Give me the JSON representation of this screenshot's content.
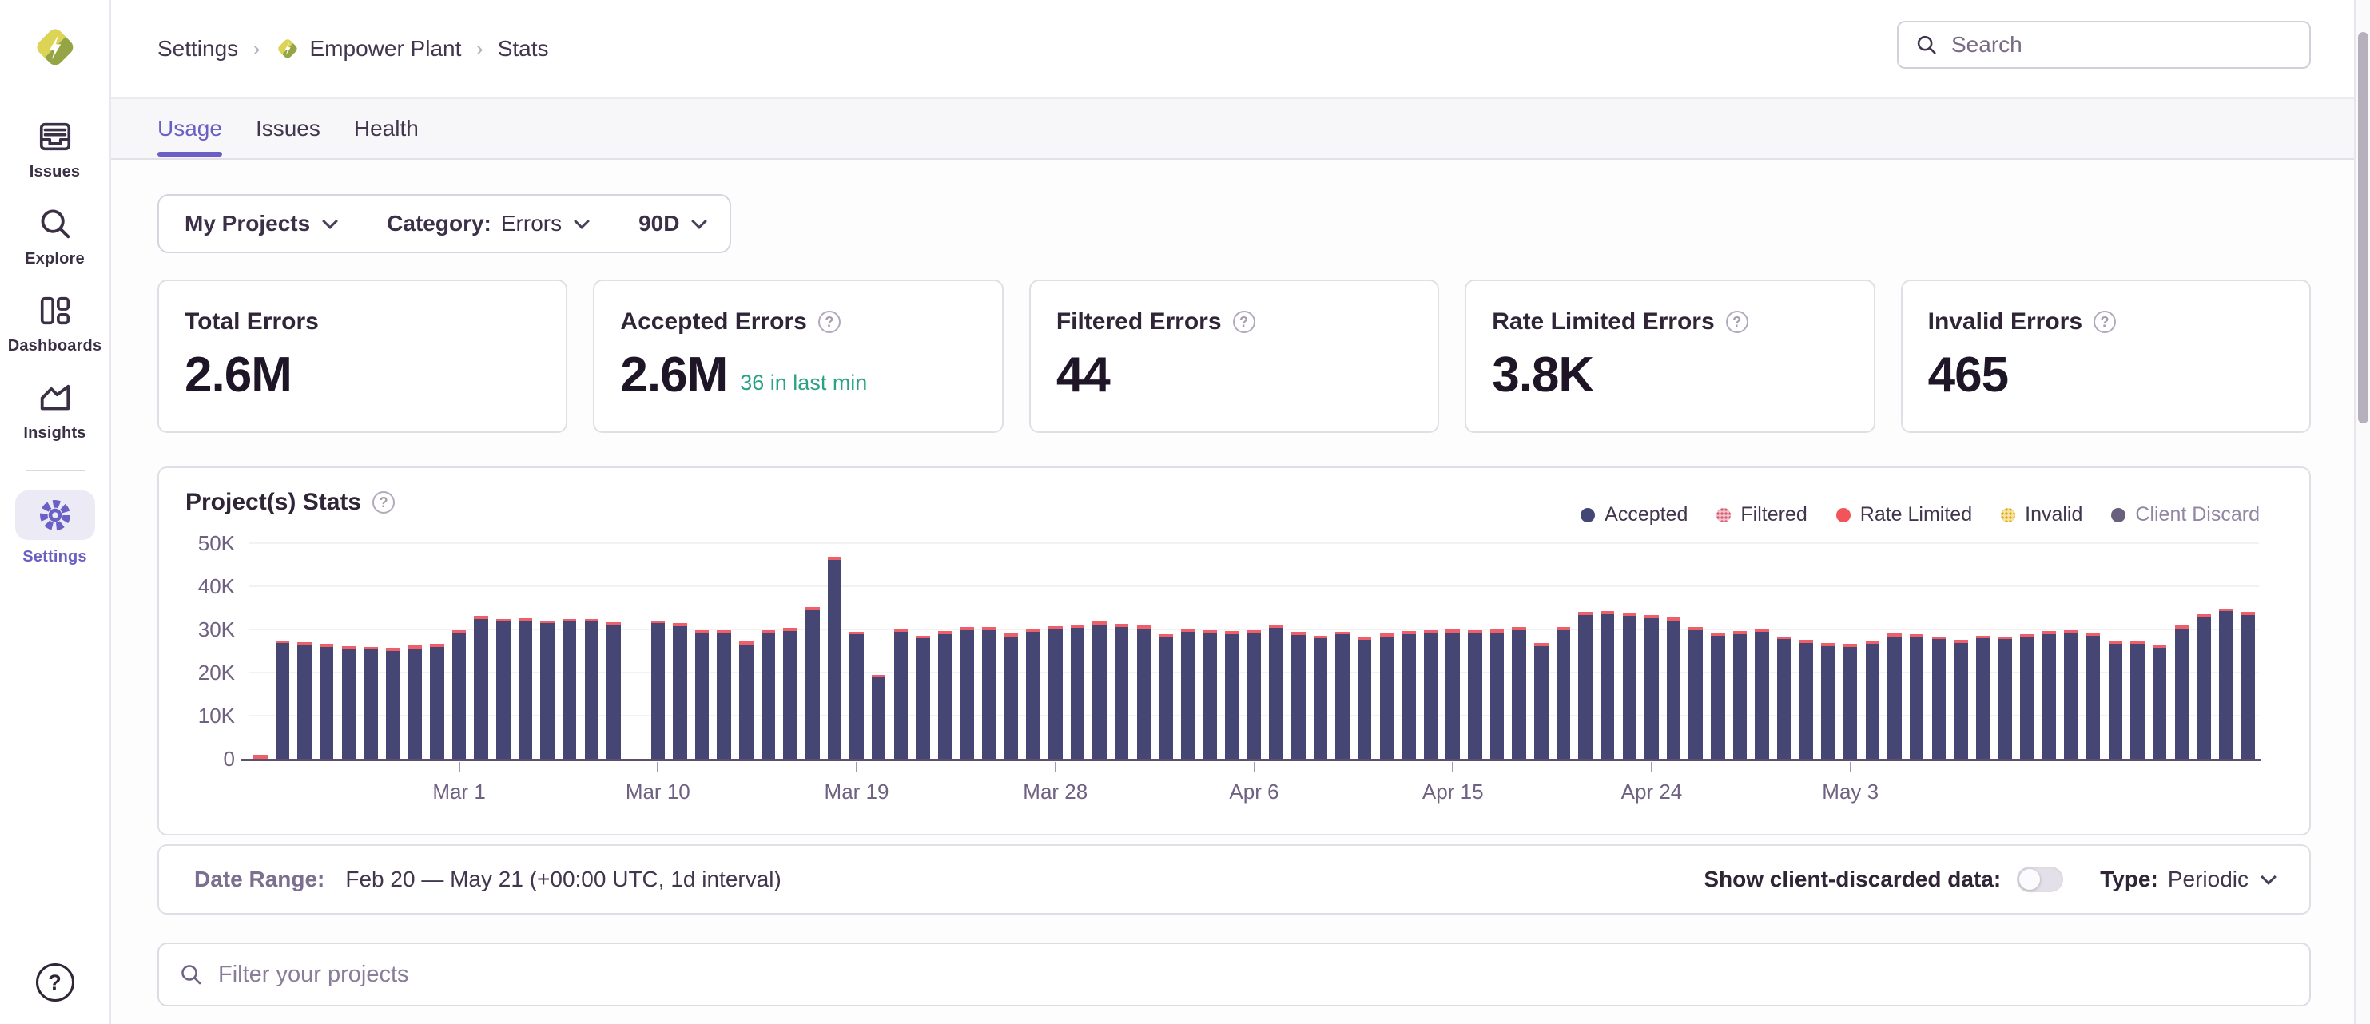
{
  "header": {
    "breadcrumbs": [
      "Settings",
      "Empower Plant",
      "Stats"
    ],
    "search_placeholder": "Search"
  },
  "sidebar": {
    "items": [
      {
        "label": "Issues",
        "active": false
      },
      {
        "label": "Explore",
        "active": false
      },
      {
        "label": "Dashboards",
        "active": false
      },
      {
        "label": "Insights",
        "active": false
      },
      {
        "label": "Settings",
        "active": true
      }
    ],
    "help_label": "?"
  },
  "tabs": [
    {
      "label": "Usage",
      "active": true
    },
    {
      "label": "Issues",
      "active": false
    },
    {
      "label": "Health",
      "active": false
    }
  ],
  "filterbar": {
    "projects": "My Projects",
    "category_label": "Category:",
    "category_value": "Errors",
    "period": "90D"
  },
  "cards": [
    {
      "title": "Total Errors",
      "value": "2.6M"
    },
    {
      "title": "Accepted Errors",
      "value": "2.6M",
      "subtext": "36 in last min"
    },
    {
      "title": "Filtered Errors",
      "value": "44"
    },
    {
      "title": "Rate Limited Errors",
      "value": "3.8K"
    },
    {
      "title": "Invalid Errors",
      "value": "465"
    }
  ],
  "stats_panel": {
    "title": "Project(s) Stats",
    "legend": [
      {
        "label": "Accepted",
        "color": "#444674",
        "pattern": "solid",
        "muted": false
      },
      {
        "label": "Filtered",
        "color": "#e9626e",
        "pattern": "dots",
        "muted": false
      },
      {
        "label": "Rate Limited",
        "color": "#f2545b",
        "pattern": "solid",
        "muted": false
      },
      {
        "label": "Invalid",
        "color": "#e9b712",
        "pattern": "dots",
        "muted": false
      },
      {
        "label": "Client Discard",
        "color": "#69607d",
        "pattern": "solid",
        "muted": true
      }
    ]
  },
  "chart_data": {
    "type": "bar",
    "stacked": true,
    "title": "Project(s) Stats",
    "x_axis": {
      "start": "Feb 20",
      "end": "May 21",
      "interval": "1d",
      "tick_labels": [
        "Mar 1",
        "Mar 10",
        "Mar 19",
        "Mar 28",
        "Apr 6",
        "Apr 15",
        "Apr 24",
        "May 3"
      ],
      "tick_day_indexes": [
        9,
        18,
        27,
        36,
        45,
        54,
        63,
        72
      ]
    },
    "y_axis": {
      "tick_labels": [
        "0",
        "10K",
        "20K",
        "30K",
        "40K",
        "50K"
      ],
      "max_k": 50
    },
    "legend_position": "top-right",
    "series": [
      {
        "name": "Accepted",
        "color": "#454673",
        "unit": "K",
        "values": [
          0,
          26.8,
          26.3,
          26.0,
          25.4,
          25.3,
          25.0,
          25.6,
          25.9,
          29.2,
          32.4,
          31.8,
          31.9,
          31.4,
          31.8,
          31.8,
          30.9,
          0,
          31.4,
          30.8,
          29.2,
          29.2,
          26.5,
          29.2,
          29.6,
          34.4,
          46.2,
          28.8,
          18.8,
          29.5,
          27.9,
          28.9,
          29.8,
          29.9,
          28.4,
          29.4,
          30.1,
          30.3,
          31.1,
          30.6,
          30.2,
          28.2,
          29.4,
          29.1,
          28.9,
          29.2,
          30.3,
          28.7,
          27.9,
          28.8,
          27.6,
          28.4,
          28.9,
          29.1,
          29.3,
          29.1,
          29.3,
          29.9,
          26.2,
          29.9,
          33.3,
          33.5,
          33.2,
          32.6,
          32.1,
          29.8,
          28.6,
          28.9,
          29.5,
          27.7,
          26.9,
          26.2,
          25.9,
          26.7,
          28.4,
          28.2,
          27.7,
          26.9,
          27.9,
          27.7,
          28.2,
          28.9,
          29.1,
          28.6,
          26.7,
          26.6,
          25.7,
          30.2,
          32.9,
          34.2,
          33.4
        ]
      },
      {
        "name": "Rate Limited",
        "color": "#ee5f69",
        "unit": "K",
        "uniform_value": 0.7,
        "overrides": {
          "0": 1.0,
          "17": 0
        }
      },
      {
        "name": "Filtered",
        "color": "#e9626e",
        "unit": "K",
        "uniform_value": 0
      },
      {
        "name": "Invalid",
        "color": "#e9b712",
        "unit": "K",
        "uniform_value": 0
      },
      {
        "name": "Client Discard",
        "color": "#69607d",
        "hidden": true
      }
    ]
  },
  "range_bar": {
    "date_range_label": "Date Range:",
    "date_range_value": "Feb 20 — May 21 (+00:00 UTC, 1d interval)",
    "client_discard_label": "Show client-discarded data:",
    "client_discard_on": false,
    "type_label": "Type:",
    "type_value": "Periodic"
  },
  "project_filter": {
    "placeholder": "Filter your projects"
  },
  "colors": {
    "accent": "#6a5fc4",
    "accepted": "#454673",
    "rate_limited": "#ee5f69",
    "success": "#2ba185",
    "logo_yellow": "#ddd456",
    "logo_olive": "#95a546"
  }
}
